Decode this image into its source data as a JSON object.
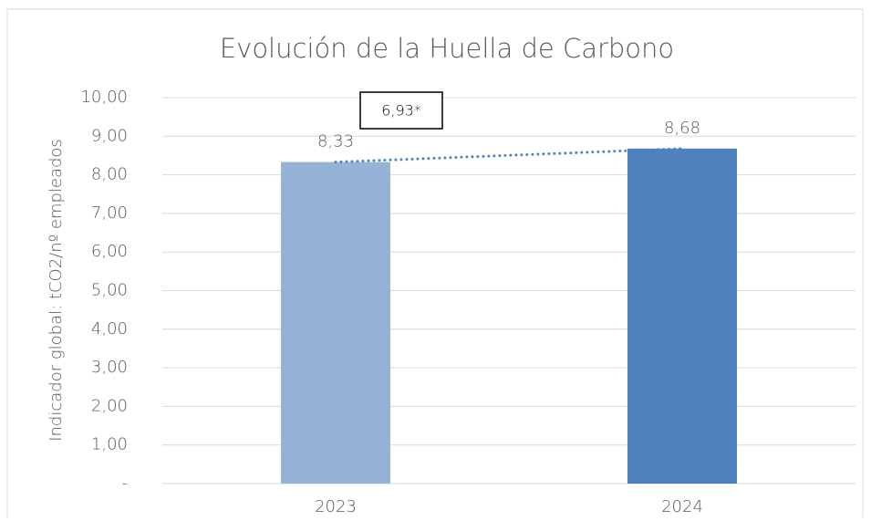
{
  "chart_data": {
    "type": "bar",
    "title": "Evolución de la Huella de Carbono",
    "y_label": "Indicador global: tCO2/nº empleados",
    "categories": [
      "2023",
      "2024"
    ],
    "values": [
      8.33,
      8.68
    ],
    "value_labels": [
      "8,33",
      "8,68"
    ],
    "colors": [
      "#95b3d7",
      "#4f81bd"
    ],
    "trendline": {
      "color": "#4f81bd",
      "style": "dotted"
    },
    "annotation": "6,93*",
    "ylim": [
      0,
      10
    ],
    "yticks": [
      {
        "value": 0,
        "label": "-"
      },
      {
        "value": 1,
        "label": "1,00"
      },
      {
        "value": 2,
        "label": "2,00"
      },
      {
        "value": 3,
        "label": "3,00"
      },
      {
        "value": 4,
        "label": "4,00"
      },
      {
        "value": 5,
        "label": "5,00"
      },
      {
        "value": 6,
        "label": "6,00"
      },
      {
        "value": 7,
        "label": "7,00"
      },
      {
        "value": 8,
        "label": "8,00"
      },
      {
        "value": 9,
        "label": "9,00"
      },
      {
        "value": 10,
        "label": "10,00"
      }
    ],
    "grid": true
  }
}
